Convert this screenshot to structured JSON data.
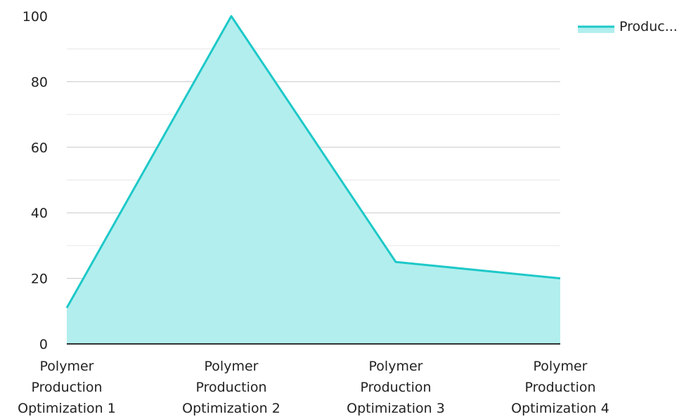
{
  "chart_data": {
    "type": "area",
    "title": "",
    "xlabel": "",
    "ylabel": "",
    "categories": [
      [
        "Polymer",
        "Production",
        "Optimization 1"
      ],
      [
        "Polymer",
        "Production",
        "Optimization 2"
      ],
      [
        "Polymer",
        "Production",
        "Optimization 3"
      ],
      [
        "Polymer",
        "Production",
        "Optimization 4"
      ]
    ],
    "series": [
      {
        "name": "Produc...",
        "values": [
          11,
          100,
          25,
          20
        ]
      }
    ],
    "ylim": [
      0,
      100
    ],
    "yticks": [
      "0",
      "20",
      "40",
      "60",
      "80",
      "100"
    ],
    "grid": true,
    "minor_grid": true,
    "legend_position": "top-right",
    "colors": {
      "line": "#1ec8c8",
      "fill": "#b2eeee",
      "grid_major": "#c8c8c8",
      "grid_minor": "#e6e6e6",
      "axis": "#333333"
    }
  }
}
